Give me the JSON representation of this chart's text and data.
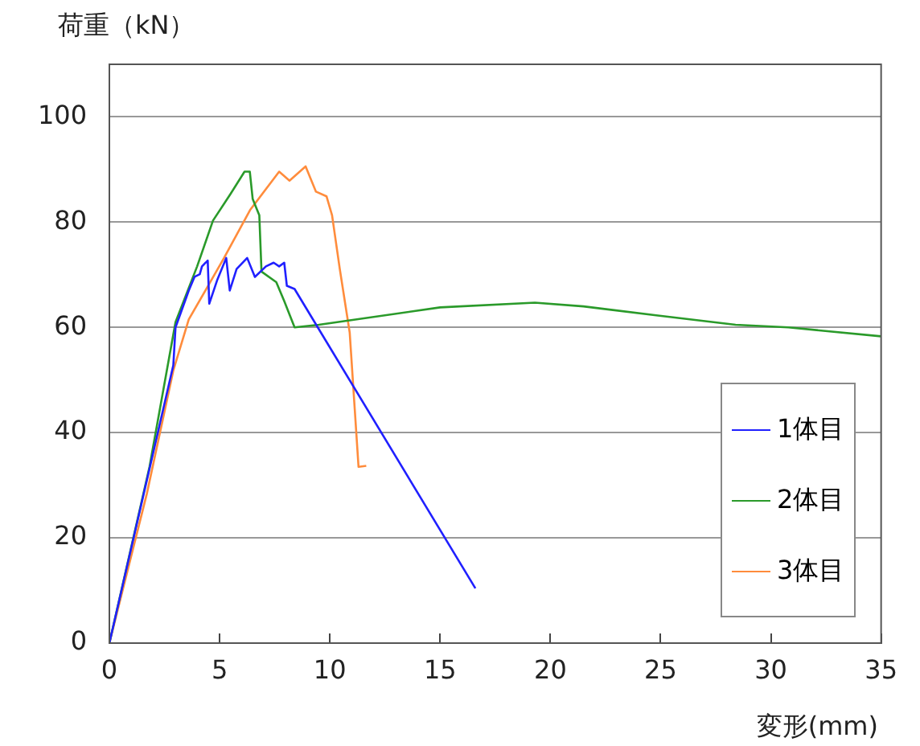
{
  "chart_data": {
    "type": "line",
    "xlabel": "変形(mm)",
    "ylabel": "荷重（kN）",
    "xlim": [
      0,
      35
    ],
    "xticks": [
      0,
      5,
      10,
      15,
      20,
      25,
      30,
      35
    ],
    "ylim": [
      0,
      110
    ],
    "yticks": [
      0,
      20,
      40,
      60,
      80,
      100
    ],
    "grid": "y",
    "legend": "right",
    "marker": "none",
    "line_style": "solid",
    "series": [
      {
        "name": "1体目",
        "color": "#2020ff",
        "x": [
          0,
          2.9,
          3.0,
          3.6,
          3.86,
          4.1,
          4.2,
          4.46,
          4.53,
          4.9,
          5.3,
          5.46,
          5.77,
          6.25,
          6.6,
          7.1,
          7.45,
          7.7,
          7.93,
          8.05,
          8.4,
          16.6
        ],
        "values": [
          0,
          52.8,
          60,
          67,
          69.6,
          70.1,
          71.6,
          72.7,
          64.5,
          69.1,
          73.2,
          67,
          71.1,
          73.2,
          69.6,
          71.6,
          72.3,
          71.6,
          72.3,
          67.9,
          67.3,
          10.4
        ]
      },
      {
        "name": "2体目",
        "color": "#2a9a2a",
        "x": [
          0,
          1.82,
          3.0,
          3.98,
          4.7,
          5.5,
          6.13,
          6.37,
          6.5,
          6.8,
          6.9,
          7.57,
          7.93,
          8.4,
          9.5,
          15.0,
          19.3,
          21.5,
          24.8,
          28.4,
          30.8,
          35
        ],
        "values": [
          0,
          33.5,
          61,
          71.6,
          80.3,
          85.4,
          89.6,
          89.6,
          84.4,
          81.3,
          70.6,
          68.6,
          65,
          60,
          60.5,
          63.8,
          64.7,
          64,
          62.3,
          60.5,
          60,
          58.3
        ]
      },
      {
        "name": "3体目",
        "color": "#ff8c3c",
        "x": [
          0,
          1.7,
          2.9,
          3.6,
          5.2,
          6.38,
          7.7,
          8.17,
          8.9,
          9.37,
          9.85,
          10.1,
          10.45,
          10.9,
          11.3,
          11.65
        ],
        "values": [
          0,
          28.4,
          51.8,
          61.5,
          73.2,
          82.3,
          89.6,
          87.9,
          90.6,
          85.8,
          84.9,
          81.3,
          71.1,
          59,
          33.5,
          33.7
        ]
      }
    ]
  }
}
